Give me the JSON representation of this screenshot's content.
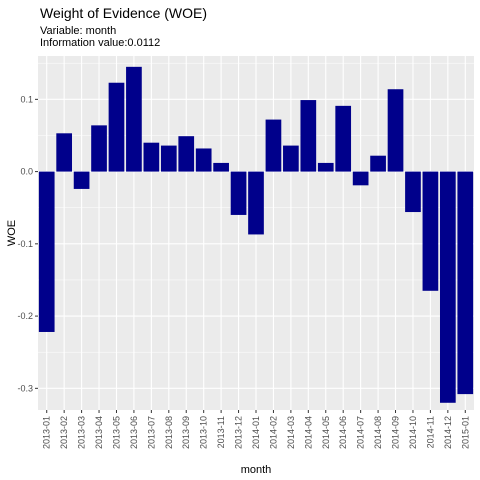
{
  "chart_data": {
    "type": "bar",
    "title": "Weight of Evidence (WOE)",
    "subtitle_lines": [
      "Variable: month",
      "Information value:0.0112"
    ],
    "xlabel": "month",
    "ylabel": "WOE",
    "ylim": [
      -0.33,
      0.16
    ],
    "yticks": [
      0.1,
      0.0,
      -0.1,
      -0.2,
      -0.3
    ],
    "ytick_labels": [
      "0.1",
      "0.0",
      "-0.1",
      "-0.2",
      "-0.3"
    ],
    "bar_color": "#00008B",
    "panel_color": "#EBEBEB",
    "grid_color": "#FFFFFF",
    "categories": [
      "2013-01",
      "2013-02",
      "2013-03",
      "2013-04",
      "2013-05",
      "2013-06",
      "2013-07",
      "2013-08",
      "2013-09",
      "2013-10",
      "2013-11",
      "2013-12",
      "2014-01",
      "2014-02",
      "2014-03",
      "2014-04",
      "2014-05",
      "2014-06",
      "2014-07",
      "2014-08",
      "2014-09",
      "2014-10",
      "2014-11",
      "2014-12",
      "2015-01"
    ],
    "values": [
      -0.222,
      0.053,
      -0.024,
      0.064,
      0.123,
      0.145,
      0.04,
      0.036,
      0.049,
      0.032,
      0.012,
      -0.06,
      -0.087,
      0.072,
      0.036,
      0.099,
      0.012,
      0.091,
      -0.019,
      0.022,
      0.114,
      -0.056,
      -0.165,
      -0.32,
      -0.308
    ]
  }
}
